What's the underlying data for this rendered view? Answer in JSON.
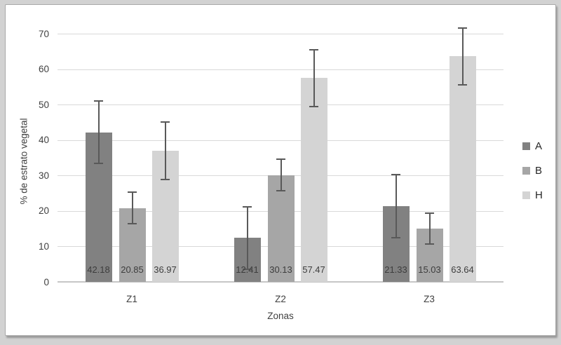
{
  "chart_data": {
    "type": "bar",
    "title": "",
    "categories": [
      "Z1",
      "Z2",
      "Z3"
    ],
    "series": [
      {
        "name": "A",
        "color": "#818181",
        "values": [
          42.18,
          12.41,
          21.33
        ],
        "value_labels": [
          "42.18",
          "12.41",
          "21.33"
        ],
        "errors": [
          8.8,
          8.8,
          8.9
        ]
      },
      {
        "name": "B",
        "color": "#a6a6a6",
        "values": [
          20.85,
          30.13,
          15.03
        ],
        "value_labels": [
          "20.85",
          "30.13",
          "15.03"
        ],
        "errors": [
          4.4,
          4.4,
          4.4
        ]
      },
      {
        "name": "H",
        "color": "#d4d4d4",
        "values": [
          36.97,
          57.47,
          63.64
        ],
        "value_labels": [
          "36.97",
          "57.47",
          "63.64"
        ],
        "errors": [
          8.1,
          8.0,
          8.0
        ]
      }
    ],
    "xlabel": "Zonas",
    "ylabel": "% de estrato vegetal",
    "ylim": [
      0,
      70
    ],
    "y_ticks": [
      0,
      10,
      20,
      30,
      40,
      50,
      60,
      70
    ],
    "grid": true,
    "error_bars": true,
    "legend": {
      "position": "right",
      "entries": [
        "A",
        "B",
        "H"
      ]
    },
    "colors": {
      "gridline": "#d9d9d9",
      "baseline": "#c6c6c6",
      "error_bar": "#595959",
      "data_label": "#3d3d3d",
      "tick_label": "#404040",
      "legend_label": "#262626",
      "frame_border": "#a9a9a9",
      "page_background": "#d2d2d2"
    }
  }
}
